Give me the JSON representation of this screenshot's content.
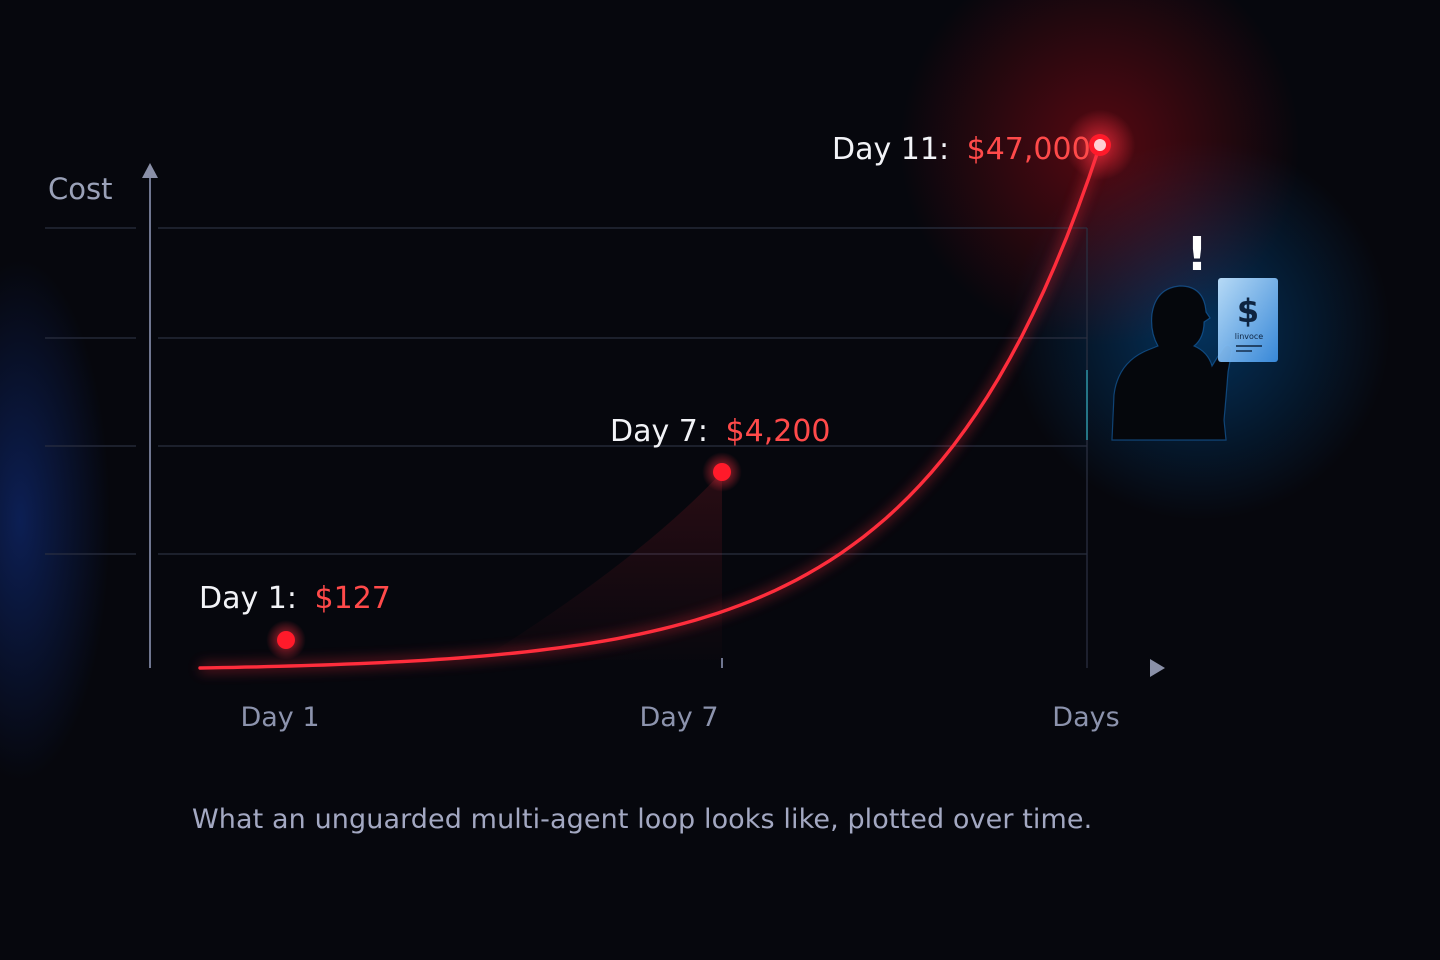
{
  "caption": "What an unguarded multi-agent loop looks like, plotted over time.",
  "colors": {
    "background": "#06070d",
    "curve": "#ff2d3c",
    "point": "#ff1a2a",
    "value_text": "#ff4a4a",
    "axis": "#6f7690",
    "grid": "#2a2f40",
    "invoice": "#3a8de0"
  },
  "chart_data": {
    "type": "line",
    "ylabel": "Cost",
    "xlabel": "Days",
    "x_tick_labels": [
      "Day 1",
      "Day 7",
      "Days"
    ],
    "grid": true,
    "y_scale": "exponential",
    "points": [
      {
        "x": 1,
        "y": 127,
        "label": "Day 1:",
        "value_label": "$127"
      },
      {
        "x": 7,
        "y": 4200,
        "label": "Day 7:",
        "value_label": "$4,200"
      },
      {
        "x": 11,
        "y": 47000,
        "label": "Day 11:",
        "value_label": "$47,000"
      }
    ]
  },
  "illustration": {
    "icon": "person-reading-invoice-icon",
    "alert_mark": "!",
    "invoice_symbol": "$",
    "invoice_text": "linvoce"
  }
}
